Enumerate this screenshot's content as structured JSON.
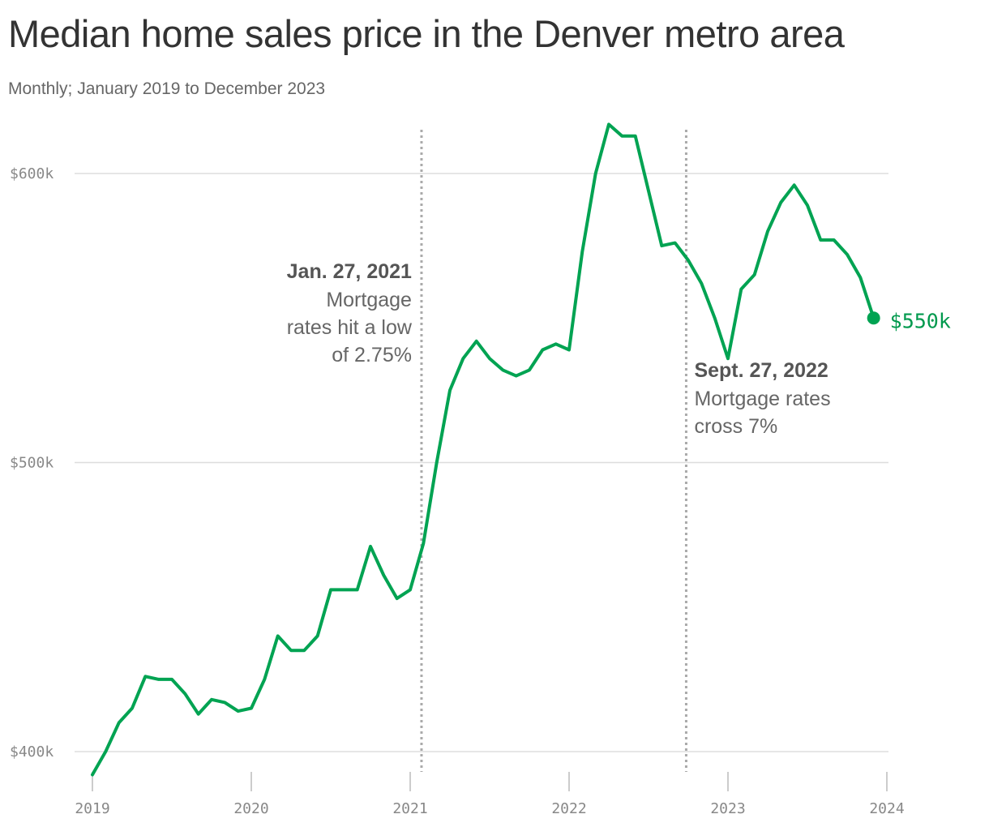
{
  "title": "Median home sales price in the Denver metro area",
  "subtitle": "Monthly; January 2019 to December 2023",
  "colors": {
    "line": "#00a352",
    "end_label": "#00994d",
    "grid": "#dddddd",
    "axis": "#bbbbbb",
    "ref_line": "#aaaaaa",
    "tick_text": "#888888",
    "annotation_text": "#666666"
  },
  "chart_data": {
    "type": "line",
    "title": "Median home sales price in the Denver metro area",
    "subtitle": "Monthly; January 2019 to December 2023",
    "xlabel": "",
    "ylabel": "",
    "x_start": "2019-01",
    "x_end": "2023-12",
    "xlim": [
      2019,
      2024
    ],
    "ylim": [
      393000,
      617000
    ],
    "x_ticks": [
      2019,
      2020,
      2021,
      2022,
      2023,
      2024
    ],
    "x_tick_labels": [
      "2019",
      "2020",
      "2021",
      "2022",
      "2023",
      "2024"
    ],
    "y_ticks": [
      400000,
      500000,
      600000
    ],
    "y_tick_labels": [
      "$400k",
      "$500k",
      "$600k"
    ],
    "grid": "horizontal",
    "legend": "none",
    "series": [
      {
        "values": [
          392000,
          400000,
          410000,
          415000,
          426000,
          425000,
          425000,
          420000,
          413000,
          418000,
          417000,
          414000,
          415000,
          425000,
          440000,
          435000,
          435000,
          440000,
          456000,
          456000,
          456000,
          471000,
          461000,
          453000,
          456000,
          472000,
          500000,
          525000,
          536000,
          542000,
          536000,
          532000,
          530000,
          532000,
          539000,
          541000,
          539000,
          573000,
          600000,
          617000,
          613000,
          613000,
          594000,
          575000,
          576000,
          570000,
          562000,
          550000,
          536000,
          560000,
          565000,
          580000,
          590000,
          596000,
          589000,
          577000,
          577000,
          572000,
          564000,
          550000
        ]
      }
    ],
    "end_label": "$550k",
    "annotations": [
      {
        "date": "2021-01-27",
        "heading": "Jan. 27, 2021",
        "lines": [
          "Mortgage",
          "rates hit a low",
          "of 2.75%"
        ]
      },
      {
        "date": "2022-09-27",
        "heading": "Sept. 27, 2022",
        "lines": [
          "Mortgage rates",
          "cross 7%"
        ]
      }
    ]
  }
}
